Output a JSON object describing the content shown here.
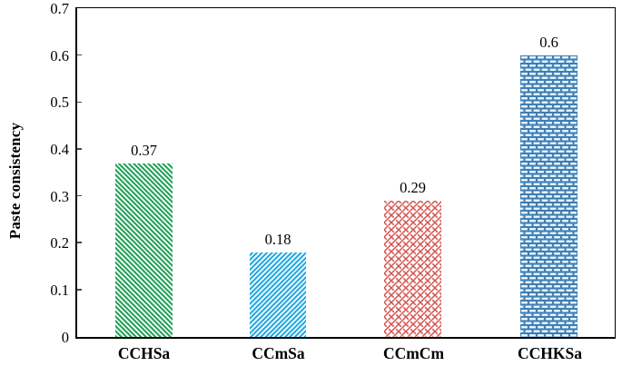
{
  "chart_data": {
    "type": "bar",
    "title": "",
    "categories": [
      "CCHSa",
      "CCmSa",
      "CCmCm",
      "CCHKSa"
    ],
    "values": [
      0.37,
      0.18,
      0.29,
      0.6
    ],
    "data_labels": [
      "0.37",
      "0.18",
      "0.29",
      "0.6"
    ],
    "xlabel": "",
    "ylabel": "Paste consistency",
    "ylim": [
      0,
      0.7
    ],
    "yticks": [
      0,
      0.1,
      0.2,
      0.3,
      0.4,
      0.5,
      0.6,
      0.7
    ],
    "ytick_labels": [
      "0",
      "0.1",
      "0.2",
      "0.3",
      "0.4",
      "0.5",
      "0.6",
      "0.7"
    ],
    "grid": false,
    "legend": "none",
    "axis_color": "#000000",
    "tick_color": "#4a4a4a",
    "bar_styles": [
      {
        "category": "CCHSa",
        "pattern": "diagonal-stripes-down",
        "color": "#29a35e"
      },
      {
        "category": "CCmSa",
        "pattern": "diagonal-stripes-up",
        "color": "#29abe2"
      },
      {
        "category": "CCmCm",
        "pattern": "diagonal-weave",
        "color": "#d4534f"
      },
      {
        "category": "CCHKSa",
        "pattern": "brick",
        "color": "#3f7fb5",
        "fill": "#cfe7f6"
      }
    ]
  }
}
